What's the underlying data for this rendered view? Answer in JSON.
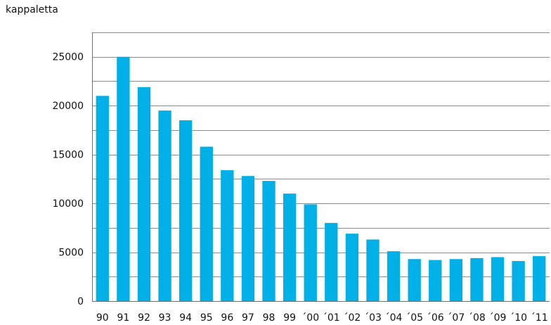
{
  "chart_data": {
    "type": "bar",
    "ylabel": "kappaletta",
    "categories": [
      "90",
      "91",
      "92",
      "93",
      "94",
      "95",
      "96",
      "97",
      "98",
      "99",
      "´00",
      "´01",
      "´02",
      "´03",
      "´04",
      "´05",
      "´06",
      "´07",
      "´08",
      "´09",
      "´10",
      "´11"
    ],
    "values": [
      21000,
      25000,
      21900,
      19500,
      18500,
      15800,
      13400,
      12800,
      12300,
      11000,
      9900,
      8000,
      6900,
      6300,
      5100,
      4300,
      4200,
      4300,
      4400,
      4500,
      4100,
      4600
    ],
    "ylim": [
      0,
      27500
    ],
    "yticks": [
      0,
      5000,
      10000,
      15000,
      20000,
      25000
    ],
    "grid": true,
    "bar_color": "#00b0e6",
    "legend": "none"
  }
}
